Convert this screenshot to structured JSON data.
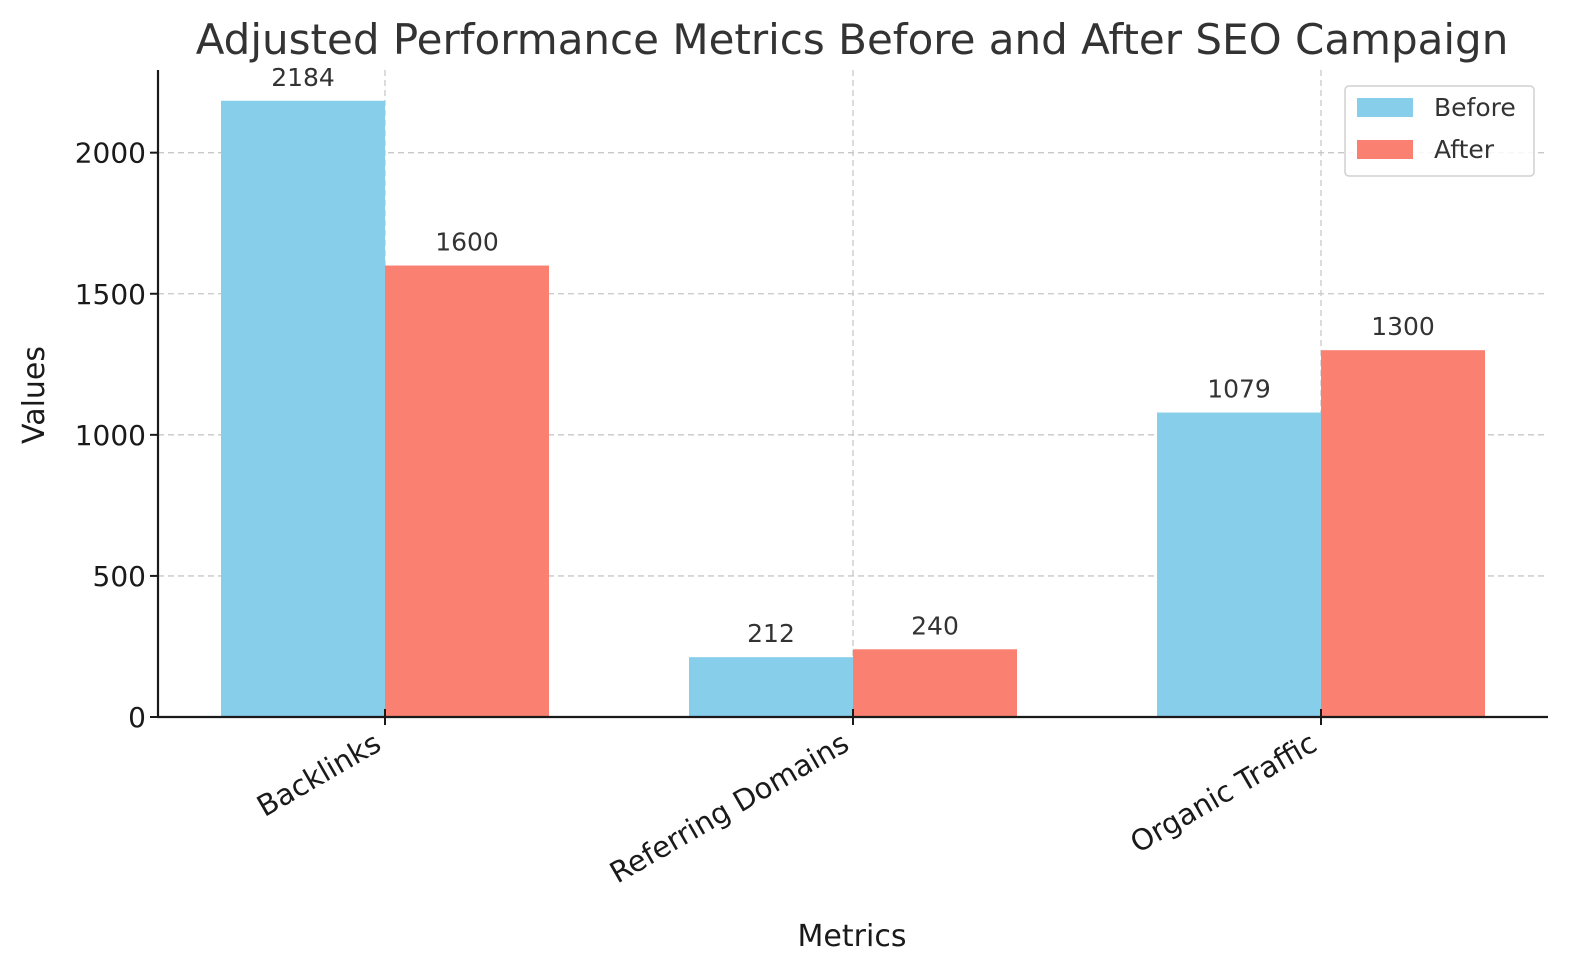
{
  "chart_data": {
    "type": "bar",
    "title": "Adjusted Performance Metrics Before and After SEO Campaign",
    "xlabel": "Metrics",
    "ylabel": "Values",
    "categories": [
      "Backlinks",
      "Referring Domains",
      "Organic Traffic"
    ],
    "series": [
      {
        "name": "Before",
        "values": [
          2184,
          212,
          1079
        ],
        "color": "#87CEEB"
      },
      {
        "name": "After",
        "values": [
          1600,
          240,
          1300
        ],
        "color": "#FA8072"
      }
    ],
    "ylim": [
      0,
      2293
    ],
    "yticks": [
      0,
      500,
      1000,
      1500,
      2000
    ],
    "grid": true,
    "legend_position": "top-right"
  }
}
